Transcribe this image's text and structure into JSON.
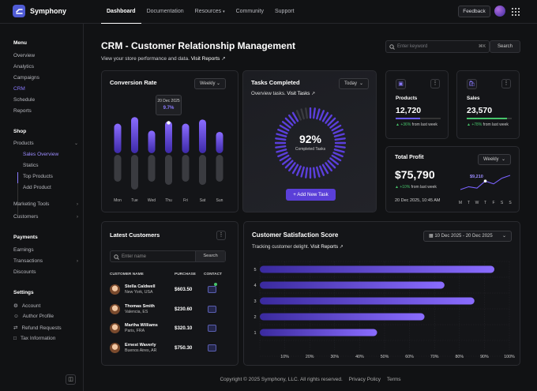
{
  "app": {
    "name": "Symphony"
  },
  "nav": {
    "items": [
      {
        "label": "Dashboard",
        "active": true
      },
      {
        "label": "Documentation"
      },
      {
        "label": "Resources",
        "has_menu": true
      },
      {
        "label": "Community"
      },
      {
        "label": "Support"
      }
    ],
    "feedback_label": "Feedback"
  },
  "sidebar": {
    "menu_heading": "Menu",
    "menu": [
      "Overview",
      "Analytics",
      "Campaigns",
      "CRM",
      "Schedule",
      "Reports"
    ],
    "active": "CRM",
    "shop_heading": "Shop",
    "shop": [
      {
        "label": "Products",
        "sub": [
          "Sales Overview",
          "Statics",
          "Top Products",
          "Add Product"
        ]
      },
      {
        "label": "Marketing Tools"
      },
      {
        "label": "Customers"
      }
    ],
    "payments_heading": "Payments",
    "payments": [
      {
        "label": "Earnings"
      },
      {
        "label": "Transactions"
      },
      {
        "label": "Discounts"
      }
    ],
    "settings_heading": "Settings",
    "settings": [
      {
        "label": "Account",
        "icon": "gear-icon"
      },
      {
        "label": "Author Profile",
        "icon": "user-icon"
      },
      {
        "label": "Refund Requests",
        "icon": "refund-icon"
      },
      {
        "label": "Tax Information",
        "icon": "document-icon"
      }
    ]
  },
  "header": {
    "title": "CRM - Customer Relationship Management",
    "subtitle": "View your store performance and data.",
    "subtitle_link": "Visit Reports",
    "search_placeholder": "Enter keyword",
    "search_shortcut": "⌘K",
    "search_button": "Search"
  },
  "conversion": {
    "title": "Conversion Rate",
    "range": "Weekly",
    "tooltip_date": "20 Dec 2025",
    "tooltip_value": "9.7%",
    "days": [
      "Mon",
      "Tue",
      "Wed",
      "Thu",
      "Fri",
      "Sat",
      "Sun"
    ],
    "chart_data": {
      "type": "bar",
      "categories": [
        "Mon",
        "Tue",
        "Wed",
        "Thu",
        "Fri",
        "Sat",
        "Sun"
      ],
      "values": [
        0.72,
        0.88,
        0.55,
        0.78,
        0.72,
        0.82,
        0.52
      ],
      "highlight_index": 3
    }
  },
  "tasks": {
    "title": "Tasks Completed",
    "range": "Today",
    "subtitle": "Overview tasks.",
    "link": "Visit Tasks",
    "percent": "92%",
    "percent_value": 92,
    "caption": "Completed Tasks",
    "button": "Add New Task"
  },
  "products": {
    "label": "Products",
    "value": "12,720",
    "delta": "+36%",
    "delta_text": "from last week",
    "progress": 0.55
  },
  "sales": {
    "label": "Sales",
    "value": "23,570",
    "delta": "+78%",
    "delta_text": "from last week",
    "progress": 0.9
  },
  "profit": {
    "title": "Total Profit",
    "range": "Weekly",
    "value": "$75,790",
    "delta": "+10%",
    "delta_text": "from last week",
    "date": "20 Dec 2025, 10:45 AM",
    "spark_label": "$9,210",
    "days": [
      "M",
      "T",
      "W",
      "T",
      "F",
      "S",
      "S"
    ],
    "chart_data": {
      "type": "line",
      "x": [
        "M",
        "T",
        "W",
        "T",
        "F",
        "S",
        "S"
      ],
      "values": [
        3,
        4,
        3.5,
        6,
        5,
        7,
        8
      ]
    }
  },
  "customers": {
    "title": "Latest Customers",
    "search_placeholder": "Enter name",
    "search_button": "Search",
    "columns": [
      "CUSTOMER NAME",
      "PURCHASE",
      "CONTACT"
    ],
    "rows": [
      {
        "name": "Stella Caldwell",
        "loc": "New York, USA",
        "amount": "$603.50",
        "online": true
      },
      {
        "name": "Thomas Smith",
        "loc": "Valencia, ES",
        "amount": "$230.60"
      },
      {
        "name": "Martha Williams",
        "loc": "Paris, FRA",
        "amount": "$320.10"
      },
      {
        "name": "Ernest Waverly",
        "loc": "Buenos Aires, AR",
        "amount": "$750.30"
      }
    ]
  },
  "csat": {
    "title": "Customer Satisfaction Score",
    "range": "10 Dec 2025 - 20 Dec 2025",
    "subtitle": "Tracking customer delight.",
    "link": "Visit Reports",
    "chart_data": {
      "type": "bar",
      "orientation": "horizontal",
      "categories": [
        "5",
        "4",
        "3",
        "2",
        "1"
      ],
      "values": [
        94,
        74,
        86,
        66,
        47
      ],
      "xticks": [
        "10%",
        "20%",
        "30%",
        "40%",
        "50%",
        "60%",
        "70%",
        "80%",
        "90%",
        "100%"
      ],
      "xlim": [
        0,
        100
      ]
    }
  },
  "footer": {
    "copyright": "Copyright © 2025 Symphony, LLC. All rights reserved.",
    "links": [
      "Privacy Policy",
      "Terms"
    ]
  },
  "colors": {
    "accent": "#6a4cf0",
    "positive": "#46c36a",
    "bg": "#111214"
  }
}
